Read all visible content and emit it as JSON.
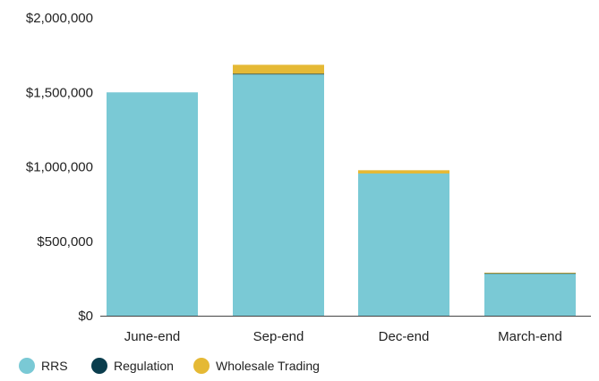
{
  "chart_data": {
    "type": "bar",
    "stacked": true,
    "categories": [
      "June-end",
      "Sep-end",
      "Dec-end",
      "March-end"
    ],
    "series": [
      {
        "name": "RRS",
        "color": "#7ac9d5",
        "values": [
          1500000,
          1620000,
          955000,
          285000
        ]
      },
      {
        "name": "Regulation",
        "color": "#0a3d4d",
        "values": [
          0,
          5000,
          0,
          1000
        ]
      },
      {
        "name": "Wholesale Trading",
        "color": "#e5b935",
        "values": [
          0,
          60000,
          22000,
          3000
        ]
      }
    ],
    "yticks": [
      "$0",
      "$500,000",
      "$1,000,000",
      "$1,500,000",
      "$2,000,000"
    ],
    "ylim": [
      0,
      2000000
    ],
    "grid": false,
    "legend_position": "bottom-left",
    "title": "",
    "xlabel": "",
    "ylabel": ""
  }
}
